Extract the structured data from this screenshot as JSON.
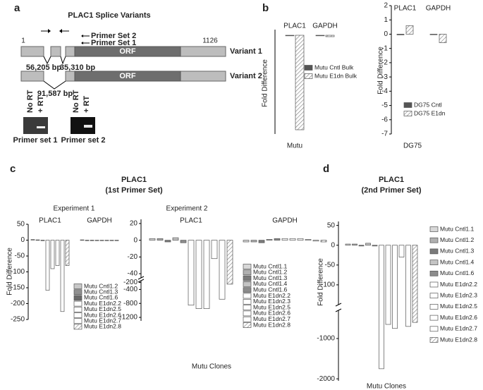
{
  "panel_a": {
    "label": "a",
    "title": "PLAC1 Splice Variants",
    "start": 1,
    "end": 1126,
    "primers": [
      "Primer Set 2",
      "Primer Set 1"
    ],
    "orf": [
      "ORF",
      "ORF"
    ],
    "variants": [
      "Variant 1",
      "Variant 2"
    ],
    "introns": [
      "56,205 bp",
      "35,310 bp",
      "91,587 bp"
    ],
    "gels": [
      {
        "lanes": [
          "No RT",
          "+ RT"
        ],
        "caption": "Primer set 1"
      },
      {
        "lanes": [
          "No RT",
          "+ RT"
        ],
        "caption": "Primer set 2"
      }
    ]
  },
  "chart_data": [
    {
      "type": "bar",
      "panel": "b",
      "ylabel": "Fold Difference",
      "xlabel": "Mutu",
      "categories": [
        "PLAC1",
        "GAPDH"
      ],
      "series": [
        {
          "name": "Mutu Cntl Bulk",
          "color": "#555555",
          "values": [
            0,
            0
          ]
        },
        {
          "name": "Mutu E1dn Bulk",
          "color": "#ffffff",
          "pattern": "hatch",
          "values": [
            -6.7,
            -0.1
          ]
        }
      ],
      "ylim": [
        -7,
        0.4
      ]
    },
    {
      "type": "bar",
      "ylabel": "Fold Difference",
      "xlabel": "DG75",
      "categories": [
        "PLAC1",
        "GAPDH"
      ],
      "series": [
        {
          "name": "DG75 Cntl",
          "color": "#555555",
          "values": [
            -0.05,
            0
          ]
        },
        {
          "name": "DG75 E1dn",
          "color": "#ffffff",
          "pattern": "hatch",
          "values": [
            0.6,
            -0.6
          ]
        }
      ],
      "ylim": [
        -7,
        2
      ],
      "yticks": [
        2,
        1,
        0,
        -1,
        -2,
        -3,
        -4,
        -5,
        -6,
        -7
      ]
    },
    {
      "type": "bar",
      "panel": "c",
      "title": "PLAC1",
      "subtitle": "(1st Primer Set)",
      "experiment": "Experiment 1",
      "ylabel": "Fold Difference",
      "categories": [
        "PLAC1",
        "GAPDH"
      ],
      "series": [
        {
          "name": "Mutu Cntl1.2",
          "color": "#c8c8c8",
          "values": [
            2,
            1
          ]
        },
        {
          "name": "Mutu Cntl1.3",
          "color": "#909090",
          "values": [
            1,
            0
          ]
        },
        {
          "name": "Mutu Cntl1.6",
          "color": "#6a6a6a",
          "values": [
            -1,
            -1
          ]
        },
        {
          "name": "Mutu E1dn2.2",
          "color": "#ffffff",
          "values": [
            -158,
            0
          ]
        },
        {
          "name": "Mutu E1dn2.5",
          "color": "#ffffff",
          "values": [
            -90,
            -1
          ]
        },
        {
          "name": "Mutu E1dn2.6",
          "color": "#ffffff",
          "values": [
            -80,
            0
          ]
        },
        {
          "name": "Mutu E1dn2.7",
          "color": "#ffffff",
          "values": [
            -225,
            -1
          ]
        },
        {
          "name": "Mutu E1dn2.8",
          "color": "#ffffff",
          "pattern": "hatch",
          "values": [
            -80,
            -1
          ]
        }
      ],
      "ylim": [
        -250,
        50
      ],
      "yticks": [
        50,
        0,
        -50,
        -100,
        -150,
        -200,
        -250
      ]
    },
    {
      "type": "bar",
      "experiment": "Experiment 2",
      "xlabel": "Mutu Clones",
      "categories": [
        "PLAC1",
        "GAPDH"
      ],
      "series": [
        {
          "name": "Mutu Cntl1.1",
          "color": "#d8d8d8",
          "values": [
            2,
            -2
          ]
        },
        {
          "name": "Mutu Cntl1.2",
          "color": "#b0b0b0",
          "values": [
            2,
            -2
          ]
        },
        {
          "name": "Mutu Cntl1.3",
          "color": "#7a7a7a",
          "values": [
            -2,
            -3
          ]
        },
        {
          "name": "Mutu Cntl1.4",
          "color": "#c4c4c4",
          "values": [
            3,
            1
          ]
        },
        {
          "name": "Mutu Cntl1.6",
          "color": "#8c8c8c",
          "values": [
            -3,
            2
          ]
        },
        {
          "name": "Mutu E1dn2.2",
          "color": "#ffffff",
          "values": [
            -850,
            2
          ]
        },
        {
          "name": "Mutu E1dn2.3",
          "color": "#ffffff",
          "values": [
            -950,
            2
          ]
        },
        {
          "name": "Mutu E1dn2.5",
          "color": "#ffffff",
          "values": [
            -950,
            2
          ]
        },
        {
          "name": "Mutu E1dn2.6",
          "color": "#ffffff",
          "values": [
            -22,
            1
          ]
        },
        {
          "name": "Mutu E1dn2.7",
          "color": "#ffffff",
          "values": [
            -680,
            -1
          ]
        },
        {
          "name": "Mutu E1dn2.8",
          "color": "#ffffff",
          "pattern": "hatch",
          "values": [
            -250,
            -2
          ]
        }
      ],
      "ylim": [
        -1300,
        25
      ],
      "ybreak": [
        -45,
        -150
      ],
      "yticks": [
        20,
        0,
        -20,
        -40,
        -200,
        -400,
        -800,
        -1200
      ]
    },
    {
      "type": "bar",
      "panel": "d",
      "title": "PLAC1",
      "subtitle": "(2nd Primer Set)",
      "ylabel": "Fold Difference",
      "xlabel": "Mutu Clones",
      "series": [
        {
          "name": "Mutu Cntl1.1",
          "color": "#d8d8d8",
          "values": [
            3
          ]
        },
        {
          "name": "Mutu Cntl1.2",
          "color": "#b0b0b0",
          "values": [
            3
          ]
        },
        {
          "name": "Mutu Cntl1.3",
          "color": "#7a7a7a",
          "values": [
            -2
          ]
        },
        {
          "name": "Mutu Cntl1.4",
          "color": "#c4c4c4",
          "values": [
            5
          ]
        },
        {
          "name": "Mutu Cntl1.6",
          "color": "#8c8c8c",
          "values": [
            -2
          ]
        },
        {
          "name": "Mutu E1dn2.2",
          "color": "#ffffff",
          "values": [
            -1750
          ]
        },
        {
          "name": "Mutu E1dn2.3",
          "color": "#ffffff",
          "values": [
            -650
          ]
        },
        {
          "name": "Mutu E1dn2.5",
          "color": "#ffffff",
          "values": [
            -750
          ]
        },
        {
          "name": "Mutu E1dn2.6",
          "color": "#ffffff",
          "values": [
            -30
          ]
        },
        {
          "name": "Mutu E1dn2.7",
          "color": "#ffffff",
          "values": [
            -700
          ]
        },
        {
          "name": "Mutu E1dn2.8",
          "color": "#ffffff",
          "pattern": "hatch",
          "values": [
            -600
          ]
        }
      ],
      "ylim": [
        -2050,
        60
      ],
      "ybreak": [
        -150,
        -300
      ],
      "yticks": [
        50,
        0,
        -50,
        -100,
        -1000,
        -2000
      ]
    }
  ]
}
